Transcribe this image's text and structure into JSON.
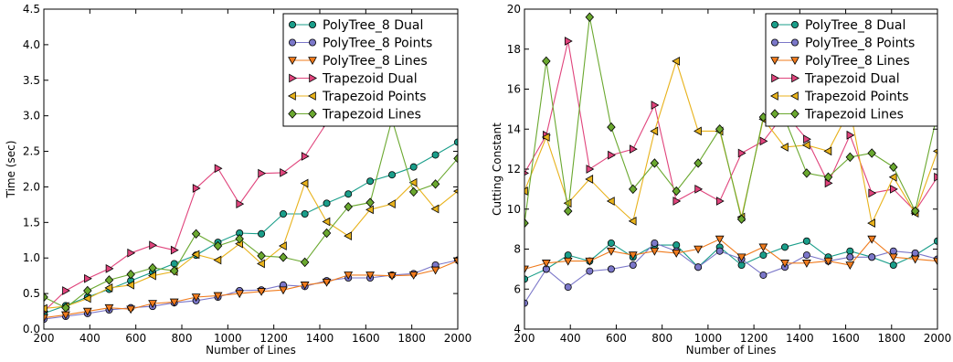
{
  "chart_data": [
    {
      "type": "line",
      "xlabel": "Number of Lines",
      "ylabel": "Time (sec)",
      "xlim": [
        200,
        2000
      ],
      "ylim": [
        0.0,
        4.5
      ],
      "xticks": [
        200,
        400,
        600,
        800,
        1000,
        1200,
        1400,
        1600,
        1800,
        2000
      ],
      "yticks": [
        "0.0",
        "0.5",
        "1.0",
        "1.5",
        "2.0",
        "2.5",
        "3.0",
        "3.5",
        "4.0",
        "4.5"
      ],
      "grid": false,
      "legend_position": "top-right",
      "x": [
        200,
        295,
        390,
        484,
        578,
        673,
        767,
        862,
        957,
        1051,
        1146,
        1241,
        1335,
        1430,
        1524,
        1619,
        1714,
        1808,
        1903,
        2000
      ],
      "series": [
        {
          "name": "PolyTree_8 Dual",
          "marker": "circle",
          "color": "#1a9e8a",
          "values": [
            0.22,
            0.33,
            0.45,
            0.56,
            0.68,
            0.8,
            0.92,
            1.04,
            1.22,
            1.35,
            1.34,
            1.62,
            1.62,
            1.77,
            1.9,
            2.08,
            2.17,
            2.28,
            2.45,
            2.63
          ]
        },
        {
          "name": "PolyTree_8 Points",
          "marker": "circle",
          "color": "#7b77c9",
          "values": [
            0.14,
            0.18,
            0.22,
            0.27,
            0.3,
            0.32,
            0.37,
            0.4,
            0.45,
            0.54,
            0.55,
            0.62,
            0.6,
            0.68,
            0.72,
            0.72,
            0.76,
            0.78,
            0.9,
            0.97
          ]
        },
        {
          "name": "PolyTree_8 Lines",
          "marker": "triangle-down",
          "color": "#f07b1d",
          "values": [
            0.16,
            0.2,
            0.25,
            0.3,
            0.28,
            0.36,
            0.38,
            0.45,
            0.47,
            0.5,
            0.53,
            0.55,
            0.62,
            0.66,
            0.76,
            0.76,
            0.75,
            0.76,
            0.83,
            0.96
          ]
        },
        {
          "name": "Trapezoid Dual",
          "marker": "triangle-right",
          "color": "#e0447c",
          "values": [
            0.25,
            0.54,
            0.71,
            0.85,
            1.07,
            1.18,
            1.11,
            1.98,
            2.26,
            1.76,
            2.19,
            2.2,
            2.43,
            2.9,
            3.6,
            3.1,
            3.55,
            3.6,
            3.75,
            4.2
          ]
        },
        {
          "name": "Trapezoid Points",
          "marker": "triangle-left",
          "color": "#e8b21b",
          "values": [
            0.29,
            0.32,
            0.43,
            0.58,
            0.62,
            0.75,
            0.81,
            1.05,
            0.97,
            1.2,
            0.92,
            1.17,
            2.05,
            1.51,
            1.31,
            1.68,
            1.76,
            2.06,
            1.69,
            1.94
          ]
        },
        {
          "name": "Trapezoid Lines",
          "marker": "diamond",
          "color": "#6aa82f",
          "values": [
            0.45,
            0.3,
            0.54,
            0.69,
            0.77,
            0.86,
            0.82,
            1.34,
            1.17,
            1.27,
            1.03,
            1.01,
            0.94,
            1.35,
            1.72,
            1.78,
            2.95,
            1.93,
            2.04,
            2.4
          ]
        }
      ]
    },
    {
      "type": "line",
      "xlabel": "Number of Lines",
      "ylabel": "Cutting Constant",
      "xlim": [
        200,
        2000
      ],
      "ylim": [
        4,
        20
      ],
      "xticks": [
        200,
        400,
        600,
        800,
        1000,
        1200,
        1400,
        1600,
        1800,
        2000
      ],
      "yticks": [
        "4",
        "6",
        "8",
        "10",
        "12",
        "14",
        "16",
        "18",
        "20"
      ],
      "grid": false,
      "legend_position": "top-right",
      "x": [
        200,
        295,
        390,
        484,
        578,
        673,
        767,
        862,
        957,
        1051,
        1146,
        1241,
        1335,
        1430,
        1524,
        1619,
        1714,
        1808,
        1903,
        2000
      ],
      "series": [
        {
          "name": "PolyTree_8 Dual",
          "marker": "circle",
          "color": "#1a9e8a",
          "values": [
            6.5,
            7.0,
            7.7,
            7.4,
            8.3,
            7.6,
            8.2,
            8.2,
            7.1,
            8.1,
            7.2,
            7.7,
            8.1,
            8.4,
            7.6,
            7.9,
            7.6,
            7.2,
            7.7,
            8.4
          ]
        },
        {
          "name": "PolyTree_8 Points",
          "marker": "circle",
          "color": "#7b77c9",
          "values": [
            5.3,
            7.0,
            6.1,
            6.9,
            7.0,
            7.2,
            8.3,
            7.9,
            7.1,
            7.9,
            7.5,
            6.7,
            7.1,
            7.7,
            7.4,
            7.6,
            7.6,
            7.9,
            7.8,
            7.5
          ]
        },
        {
          "name": "PolyTree_8 Lines",
          "marker": "triangle-down",
          "color": "#f07b1d",
          "values": [
            7.0,
            7.3,
            7.4,
            7.4,
            7.9,
            7.7,
            7.9,
            7.8,
            8.0,
            8.5,
            7.6,
            8.1,
            7.3,
            7.3,
            7.4,
            7.2,
            8.5,
            7.6,
            7.5,
            7.4
          ]
        },
        {
          "name": "Trapezoid Dual",
          "marker": "triangle-right",
          "color": "#e0447c",
          "values": [
            11.8,
            13.7,
            18.4,
            12.0,
            12.7,
            13.0,
            15.2,
            10.4,
            11.0,
            10.4,
            12.8,
            13.4,
            14.8,
            13.5,
            11.3,
            13.7,
            10.8,
            11.0,
            9.9,
            11.6
          ]
        },
        {
          "name": "Trapezoid Points",
          "marker": "triangle-left",
          "color": "#e8b21b",
          "values": [
            10.9,
            13.6,
            10.3,
            11.5,
            10.4,
            9.4,
            13.9,
            17.4,
            13.9,
            13.9,
            9.6,
            14.5,
            13.1,
            13.2,
            12.9,
            15.0,
            9.3,
            11.6,
            9.8,
            12.9
          ]
        },
        {
          "name": "Trapezoid Lines",
          "marker": "diamond",
          "color": "#6aa82f",
          "values": [
            9.3,
            17.4,
            9.9,
            19.6,
            14.1,
            11.0,
            12.3,
            10.9,
            12.3,
            14.0,
            9.5,
            14.6,
            14.5,
            11.8,
            11.6,
            12.6,
            12.8,
            12.1,
            9.9,
            14.8
          ]
        }
      ]
    }
  ]
}
